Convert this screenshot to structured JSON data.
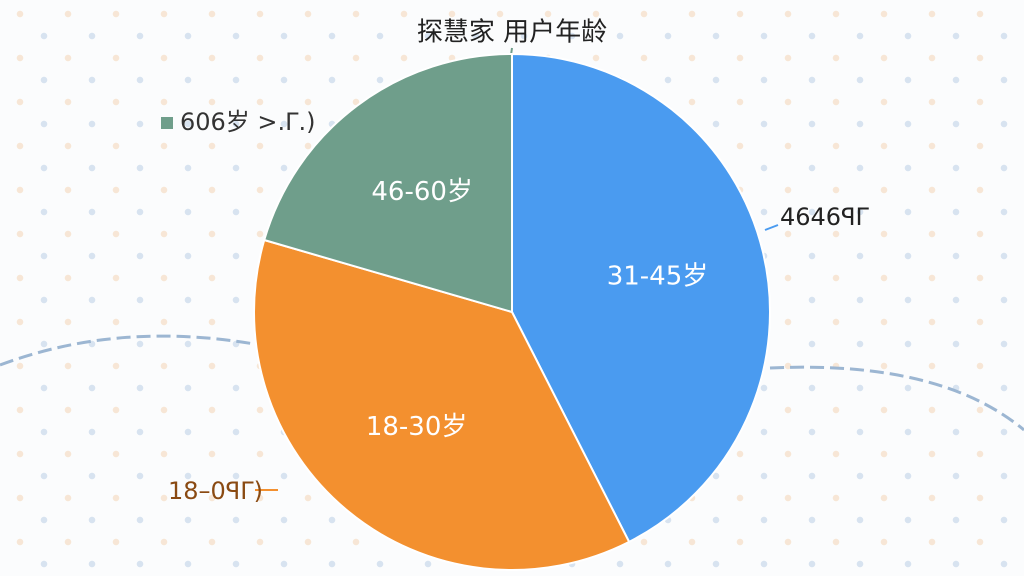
{
  "chart_data": {
    "type": "pie",
    "title": "探慧家 用户年龄",
    "categories": [
      "31-45岁",
      "18-30岁",
      "46-60岁"
    ],
    "values": [
      42.5,
      37,
      20.5
    ],
    "colors": [
      "#4a9bf0",
      "#f3902f",
      "#6f9e8b"
    ],
    "annotations": [
      "4646ꟼΓ",
      "18–0ꟼΓ)",
      "606岁 >.Γ.)"
    ]
  }
}
